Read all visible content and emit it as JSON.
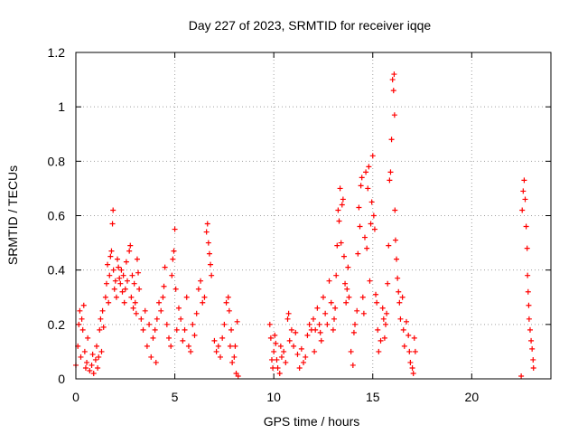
{
  "chart_data": {
    "type": "scatter",
    "title": "Day 227 of 2023, SRMTID for receiver iqqe",
    "xlabel": "GPS time / hours",
    "ylabel": "SRMTID / TECUs",
    "xlim": [
      0,
      24
    ],
    "ylim": [
      0,
      1.2
    ],
    "xticks": [
      0,
      5,
      10,
      15,
      20
    ],
    "xtick_labels": [
      "0",
      "5",
      "10",
      "15",
      "20"
    ],
    "yticks": [
      0,
      0.2,
      0.4,
      0.6,
      0.8,
      1,
      1.2
    ],
    "ytick_labels": [
      "0",
      "0.2",
      "0.4",
      "0.6",
      "0.8",
      "1",
      "1.2"
    ],
    "grid": true,
    "marker": "+",
    "color": "#ff0000",
    "series": [
      {
        "name": "SRMTID",
        "points": [
          [
            0.0,
            0.05
          ],
          [
            0.1,
            0.12
          ],
          [
            0.15,
            0.2
          ],
          [
            0.2,
            0.25
          ],
          [
            0.25,
            0.08
          ],
          [
            0.3,
            0.22
          ],
          [
            0.35,
            0.18
          ],
          [
            0.4,
            0.27
          ],
          [
            0.45,
            0.1
          ],
          [
            0.5,
            0.04
          ],
          [
            0.55,
            0.06
          ],
          [
            0.6,
            0.15
          ],
          [
            0.7,
            0.03
          ],
          [
            0.8,
            0.05
          ],
          [
            0.85,
            0.09
          ],
          [
            0.9,
            0.02
          ],
          [
            1.0,
            0.07
          ],
          [
            1.05,
            0.12
          ],
          [
            1.1,
            0.04
          ],
          [
            1.15,
            0.08
          ],
          [
            1.2,
            0.18
          ],
          [
            1.25,
            0.22
          ],
          [
            1.3,
            0.1
          ],
          [
            1.35,
            0.25
          ],
          [
            1.4,
            0.19
          ],
          [
            1.5,
            0.3
          ],
          [
            1.55,
            0.35
          ],
          [
            1.6,
            0.42
          ],
          [
            1.65,
            0.28
          ],
          [
            1.7,
            0.38
          ],
          [
            1.75,
            0.45
          ],
          [
            1.8,
            0.47
          ],
          [
            1.85,
            0.57
          ],
          [
            1.88,
            0.62
          ],
          [
            1.9,
            0.4
          ],
          [
            1.95,
            0.33
          ],
          [
            2.0,
            0.36
          ],
          [
            2.05,
            0.3
          ],
          [
            2.1,
            0.44
          ],
          [
            2.15,
            0.41
          ],
          [
            2.2,
            0.37
          ],
          [
            2.25,
            0.35
          ],
          [
            2.3,
            0.4
          ],
          [
            2.35,
            0.32
          ],
          [
            2.4,
            0.38
          ],
          [
            2.45,
            0.28
          ],
          [
            2.5,
            0.33
          ],
          [
            2.55,
            0.43
          ],
          [
            2.6,
            0.36
          ],
          [
            2.7,
            0.47
          ],
          [
            2.75,
            0.49
          ],
          [
            2.8,
            0.3
          ],
          [
            2.85,
            0.38
          ],
          [
            2.9,
            0.26
          ],
          [
            2.95,
            0.35
          ],
          [
            3.0,
            0.28
          ],
          [
            3.05,
            0.24
          ],
          [
            3.1,
            0.44
          ],
          [
            3.15,
            0.39
          ],
          [
            3.2,
            0.33
          ],
          [
            3.3,
            0.22
          ],
          [
            3.4,
            0.18
          ],
          [
            3.5,
            0.25
          ],
          [
            3.6,
            0.12
          ],
          [
            3.7,
            0.2
          ],
          [
            3.8,
            0.08
          ],
          [
            3.9,
            0.15
          ],
          [
            4.0,
            0.18
          ],
          [
            4.05,
            0.06
          ],
          [
            4.1,
            0.22
          ],
          [
            4.2,
            0.28
          ],
          [
            4.3,
            0.25
          ],
          [
            4.4,
            0.3
          ],
          [
            4.45,
            0.34
          ],
          [
            4.5,
            0.41
          ],
          [
            4.6,
            0.2
          ],
          [
            4.7,
            0.15
          ],
          [
            4.8,
            0.12
          ],
          [
            4.85,
            0.38
          ],
          [
            4.9,
            0.44
          ],
          [
            4.95,
            0.47
          ],
          [
            5.0,
            0.55
          ],
          [
            5.05,
            0.33
          ],
          [
            5.1,
            0.18
          ],
          [
            5.2,
            0.26
          ],
          [
            5.3,
            0.22
          ],
          [
            5.4,
            0.14
          ],
          [
            5.5,
            0.18
          ],
          [
            5.6,
            0.3
          ],
          [
            5.7,
            0.12
          ],
          [
            5.8,
            0.1
          ],
          [
            5.9,
            0.2
          ],
          [
            6.0,
            0.16
          ],
          [
            6.1,
            0.24
          ],
          [
            6.2,
            0.33
          ],
          [
            6.3,
            0.36
          ],
          [
            6.4,
            0.28
          ],
          [
            6.5,
            0.3
          ],
          [
            6.6,
            0.54
          ],
          [
            6.65,
            0.57
          ],
          [
            6.7,
            0.5
          ],
          [
            6.75,
            0.46
          ],
          [
            6.8,
            0.42
          ],
          [
            6.85,
            0.38
          ],
          [
            7.0,
            0.14
          ],
          [
            7.1,
            0.1
          ],
          [
            7.2,
            0.12
          ],
          [
            7.3,
            0.08
          ],
          [
            7.4,
            0.15
          ],
          [
            7.5,
            0.2
          ],
          [
            7.6,
            0.28
          ],
          [
            7.7,
            0.3
          ],
          [
            7.75,
            0.25
          ],
          [
            7.8,
            0.12
          ],
          [
            7.85,
            0.18
          ],
          [
            7.9,
            0.06
          ],
          [
            8.0,
            0.08
          ],
          [
            8.05,
            0.12
          ],
          [
            8.1,
            0.02
          ],
          [
            8.15,
            0.21
          ],
          [
            8.2,
            0.01
          ],
          [
            9.8,
            0.2
          ],
          [
            9.85,
            0.15
          ],
          [
            9.9,
            0.07
          ],
          [
            9.95,
            0.04
          ],
          [
            10.0,
            0.1
          ],
          [
            10.05,
            0.16
          ],
          [
            10.1,
            0.13
          ],
          [
            10.15,
            0.07
          ],
          [
            10.2,
            0.04
          ],
          [
            10.3,
            0.02
          ],
          [
            10.35,
            0.12
          ],
          [
            10.4,
            0.08
          ],
          [
            10.5,
            0.1
          ],
          [
            10.6,
            0.06
          ],
          [
            10.7,
            0.22
          ],
          [
            10.75,
            0.24
          ],
          [
            10.8,
            0.14
          ],
          [
            10.9,
            0.18
          ],
          [
            11.0,
            0.12
          ],
          [
            11.1,
            0.17
          ],
          [
            11.2,
            0.09
          ],
          [
            11.3,
            0.04
          ],
          [
            11.4,
            0.11
          ],
          [
            11.5,
            0.06
          ],
          [
            11.6,
            0.08
          ],
          [
            11.7,
            0.16
          ],
          [
            11.8,
            0.2
          ],
          [
            11.9,
            0.18
          ],
          [
            12.0,
            0.22
          ],
          [
            12.05,
            0.1
          ],
          [
            12.1,
            0.18
          ],
          [
            12.2,
            0.26
          ],
          [
            12.3,
            0.2
          ],
          [
            12.35,
            0.17
          ],
          [
            12.4,
            0.14
          ],
          [
            12.5,
            0.3
          ],
          [
            12.6,
            0.24
          ],
          [
            12.7,
            0.2
          ],
          [
            12.8,
            0.36
          ],
          [
            12.9,
            0.28
          ],
          [
            13.0,
            0.18
          ],
          [
            13.05,
            0.22
          ],
          [
            13.1,
            0.26
          ],
          [
            13.15,
            0.38
          ],
          [
            13.2,
            0.49
          ],
          [
            13.25,
            0.62
          ],
          [
            13.3,
            0.58
          ],
          [
            13.35,
            0.7
          ],
          [
            13.4,
            0.5
          ],
          [
            13.45,
            0.64
          ],
          [
            13.5,
            0.66
          ],
          [
            13.55,
            0.45
          ],
          [
            13.6,
            0.35
          ],
          [
            13.65,
            0.28
          ],
          [
            13.7,
            0.33
          ],
          [
            13.75,
            0.41
          ],
          [
            13.8,
            0.3
          ],
          [
            13.9,
            0.1
          ],
          [
            14.0,
            0.05
          ],
          [
            14.05,
            0.17
          ],
          [
            14.1,
            0.2
          ],
          [
            14.2,
            0.25
          ],
          [
            14.25,
            0.46
          ],
          [
            14.3,
            0.63
          ],
          [
            14.35,
            0.56
          ],
          [
            14.4,
            0.71
          ],
          [
            14.45,
            0.74
          ],
          [
            14.5,
            0.3
          ],
          [
            14.55,
            0.24
          ],
          [
            14.6,
            0.52
          ],
          [
            14.65,
            0.76
          ],
          [
            14.7,
            0.48
          ],
          [
            14.75,
            0.7
          ],
          [
            14.8,
            0.78
          ],
          [
            14.85,
            0.36
          ],
          [
            14.9,
            0.57
          ],
          [
            14.95,
            0.65
          ],
          [
            15.0,
            0.82
          ],
          [
            15.05,
            0.6
          ],
          [
            15.1,
            0.55
          ],
          [
            15.15,
            0.31
          ],
          [
            15.2,
            0.28
          ],
          [
            15.25,
            0.18
          ],
          [
            15.3,
            0.1
          ],
          [
            15.4,
            0.14
          ],
          [
            15.5,
            0.26
          ],
          [
            15.55,
            0.22
          ],
          [
            15.6,
            0.15
          ],
          [
            15.65,
            0.2
          ],
          [
            15.7,
            0.24
          ],
          [
            15.75,
            0.35
          ],
          [
            15.8,
            0.49
          ],
          [
            15.85,
            0.73
          ],
          [
            15.9,
            0.76
          ],
          [
            15.95,
            0.88
          ],
          [
            16.0,
            1.1
          ],
          [
            16.05,
            1.06
          ],
          [
            16.08,
            1.12
          ],
          [
            16.1,
            0.97
          ],
          [
            16.12,
            0.62
          ],
          [
            16.15,
            0.51
          ],
          [
            16.2,
            0.44
          ],
          [
            16.25,
            0.37
          ],
          [
            16.3,
            0.32
          ],
          [
            16.35,
            0.28
          ],
          [
            16.4,
            0.22
          ],
          [
            16.5,
            0.3
          ],
          [
            16.55,
            0.18
          ],
          [
            16.6,
            0.12
          ],
          [
            16.7,
            0.21
          ],
          [
            16.8,
            0.16
          ],
          [
            16.85,
            0.1
          ],
          [
            16.9,
            0.06
          ],
          [
            17.0,
            0.04
          ],
          [
            17.05,
            0.02
          ],
          [
            17.1,
            0.15
          ],
          [
            17.15,
            0.1
          ],
          [
            22.5,
            0.01
          ],
          [
            22.55,
            0.62
          ],
          [
            22.6,
            0.69
          ],
          [
            22.65,
            0.73
          ],
          [
            22.7,
            0.66
          ],
          [
            22.75,
            0.56
          ],
          [
            22.8,
            0.48
          ],
          [
            22.82,
            0.38
          ],
          [
            22.85,
            0.32
          ],
          [
            22.88,
            0.27
          ],
          [
            22.9,
            0.22
          ],
          [
            22.95,
            0.18
          ],
          [
            23.0,
            0.14
          ],
          [
            23.05,
            0.11
          ],
          [
            23.1,
            0.07
          ],
          [
            23.12,
            0.04
          ]
        ]
      }
    ]
  }
}
